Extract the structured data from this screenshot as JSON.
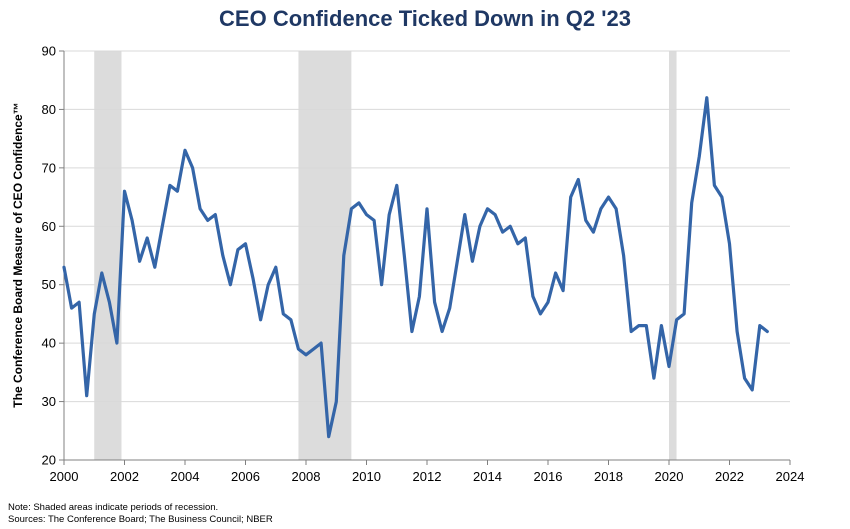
{
  "chart_data": {
    "type": "line",
    "title": "CEO Confidence Ticked Down in Q2 '23",
    "ylabel": "The Conference Board Measure of CEO Confidence™",
    "xlabel": "",
    "xlim": [
      2000,
      2024
    ],
    "ylim": [
      20,
      90
    ],
    "x_ticks": [
      2000,
      2002,
      2004,
      2006,
      2008,
      2010,
      2012,
      2014,
      2016,
      2018,
      2020,
      2022,
      2024
    ],
    "y_ticks": [
      20,
      30,
      40,
      50,
      60,
      70,
      80,
      90
    ],
    "grid": "horizontal",
    "line_color": "#3465a8",
    "recession_color": "#dcdcdc",
    "recessions": [
      [
        2001.0,
        2001.9
      ],
      [
        2007.75,
        2009.5
      ],
      [
        2020.0,
        2020.25
      ]
    ],
    "series": [
      {
        "x": [
          2000.0,
          2000.25,
          2000.5,
          2000.75,
          2001.0,
          2001.25,
          2001.5,
          2001.75,
          2002.0,
          2002.25,
          2002.5,
          2002.75,
          2003.0,
          2003.25,
          2003.5,
          2003.75,
          2004.0,
          2004.25,
          2004.5,
          2004.75,
          2005.0,
          2005.25,
          2005.5,
          2005.75,
          2006.0,
          2006.25,
          2006.5,
          2006.75,
          2007.0,
          2007.25,
          2007.5,
          2007.75,
          2008.0,
          2008.25,
          2008.5,
          2008.75,
          2009.0,
          2009.25,
          2009.5,
          2009.75,
          2010.0,
          2010.25,
          2010.5,
          2010.75,
          2011.0,
          2011.25,
          2011.5,
          2011.75,
          2012.0,
          2012.25,
          2012.5,
          2012.75,
          2013.0,
          2013.25,
          2013.5,
          2013.75,
          2014.0,
          2014.25,
          2014.5,
          2014.75,
          2015.0,
          2015.25,
          2015.5,
          2015.75,
          2016.0,
          2016.25,
          2016.5,
          2016.75,
          2017.0,
          2017.25,
          2017.5,
          2017.75,
          2018.0,
          2018.25,
          2018.5,
          2018.75,
          2019.0,
          2019.25,
          2019.5,
          2019.75,
          2020.0,
          2020.25,
          2020.5,
          2020.75,
          2021.0,
          2021.25,
          2021.5,
          2021.75,
          2022.0,
          2022.25,
          2022.5,
          2022.75,
          2023.0,
          2023.25
        ],
        "values": [
          53,
          46,
          47,
          31,
          45,
          52,
          47,
          40,
          66,
          61,
          54,
          58,
          53,
          60,
          67,
          66,
          73,
          70,
          63,
          61,
          62,
          55,
          50,
          56,
          57,
          51,
          44,
          50,
          53,
          45,
          44,
          39,
          38,
          39,
          40,
          24,
          30,
          55,
          63,
          64,
          62,
          61,
          50,
          62,
          67,
          55,
          42,
          48,
          63,
          47,
          42,
          46,
          54,
          62,
          54,
          60,
          63,
          62,
          59,
          60,
          57,
          58,
          48,
          45,
          47,
          52,
          49,
          65,
          68,
          61,
          59,
          63,
          65,
          63,
          55,
          42,
          43,
          43,
          34,
          43,
          36,
          44,
          45,
          64,
          72,
          82,
          67,
          65,
          57,
          42,
          34,
          32,
          43,
          42
        ]
      }
    ]
  },
  "footnotes": {
    "note": "Note: Shaded areas indicate periods of  recession.",
    "sources": "Sources: The  Conference Board; The Business Council; NBER"
  }
}
